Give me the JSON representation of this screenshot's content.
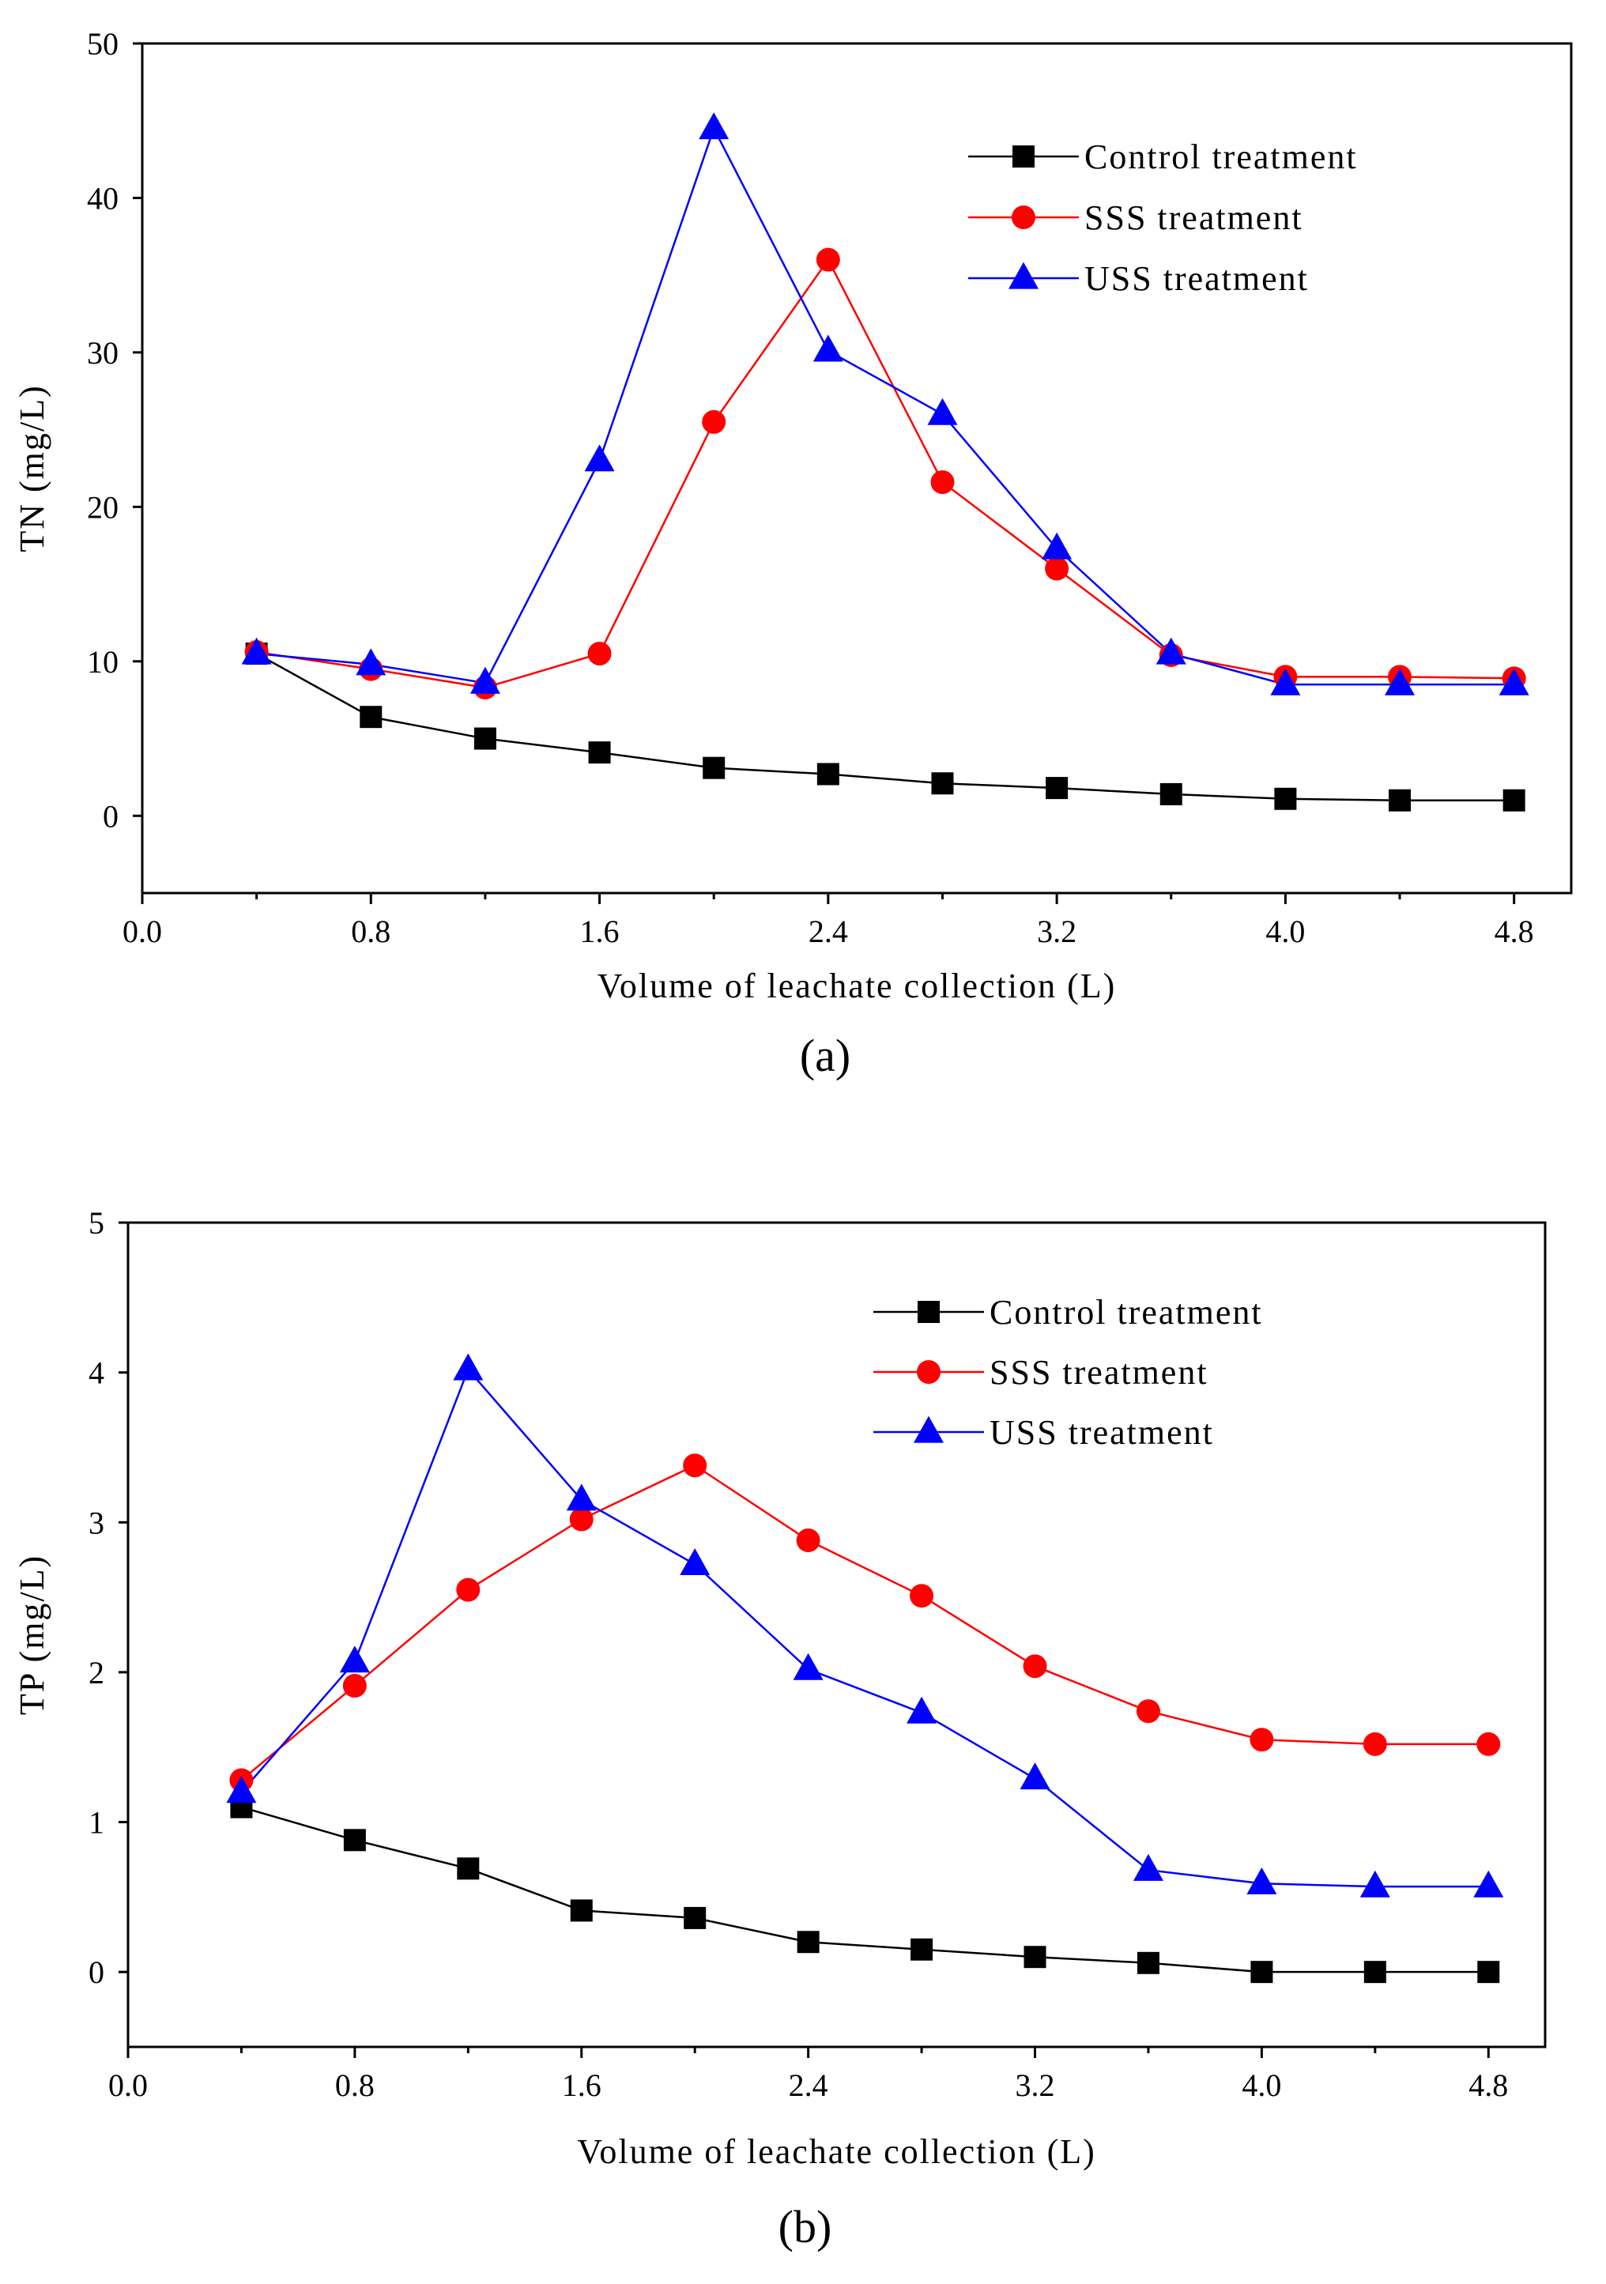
{
  "chart_data": [
    {
      "type": "line",
      "panel": "(a)",
      "xlabel": "Volume of leachate collection (L)",
      "ylabel": "TN (mg/L)",
      "xlim": [
        0.0,
        5.0
      ],
      "ylim": [
        -5,
        50
      ],
      "xticks": [
        "0.0",
        "0.8",
        "1.6",
        "2.4",
        "3.2",
        "4.0",
        "4.8"
      ],
      "yticks": [
        "0",
        "10",
        "20",
        "30",
        "40",
        "50"
      ],
      "x": [
        0.4,
        0.8,
        1.2,
        1.6,
        2.0,
        2.4,
        2.8,
        3.2,
        3.6,
        4.0,
        4.4,
        4.8
      ],
      "legend_position": "top-right",
      "series": [
        {
          "name": "Control treatment",
          "color": "#000000",
          "marker": "square",
          "values": [
            10.5,
            6.4,
            5.0,
            4.1,
            3.1,
            2.7,
            2.1,
            1.8,
            1.4,
            1.1,
            1.0,
            1.0
          ]
        },
        {
          "name": "SSS treatment",
          "color": "#ff0000",
          "marker": "circle",
          "values": [
            10.6,
            9.5,
            8.3,
            10.5,
            25.5,
            36.0,
            21.6,
            16.0,
            10.4,
            9.0,
            9.0,
            8.9
          ]
        },
        {
          "name": "USS treatment",
          "color": "#0000ff",
          "marker": "triangle",
          "values": [
            10.5,
            9.8,
            8.6,
            23.0,
            44.5,
            30.1,
            26.0,
            17.3,
            10.5,
            8.5,
            8.5,
            8.5
          ]
        }
      ]
    },
    {
      "type": "line",
      "panel": "(b)",
      "xlabel": "Volume of leachate collection (L)",
      "ylabel": "TP (mg/L)",
      "xlim": [
        0.0,
        5.0
      ],
      "ylim": [
        -0.5,
        5.0
      ],
      "xticks": [
        "0.0",
        "0.8",
        "1.6",
        "2.4",
        "3.2",
        "4.0",
        "4.8"
      ],
      "yticks": [
        "0",
        "1",
        "2",
        "3",
        "4",
        "5"
      ],
      "x": [
        0.4,
        0.8,
        1.2,
        1.6,
        2.0,
        2.4,
        2.8,
        3.2,
        3.6,
        4.0,
        4.4,
        4.8
      ],
      "legend_position": "top-right",
      "series": [
        {
          "name": "Control treatment",
          "color": "#000000",
          "marker": "square",
          "values": [
            1.1,
            0.88,
            0.69,
            0.41,
            0.36,
            0.2,
            0.15,
            0.1,
            0.06,
            0.0,
            0.0,
            0.0
          ]
        },
        {
          "name": "SSS treatment",
          "color": "#ff0000",
          "marker": "circle",
          "values": [
            1.28,
            1.91,
            2.55,
            3.02,
            3.38,
            2.88,
            2.51,
            2.04,
            1.74,
            1.55,
            1.52,
            1.52
          ]
        },
        {
          "name": "USS treatment",
          "color": "#0000ff",
          "marker": "triangle",
          "values": [
            1.2,
            2.07,
            4.02,
            3.15,
            2.72,
            2.02,
            1.73,
            1.29,
            0.68,
            0.59,
            0.57,
            0.57
          ]
        }
      ]
    }
  ]
}
